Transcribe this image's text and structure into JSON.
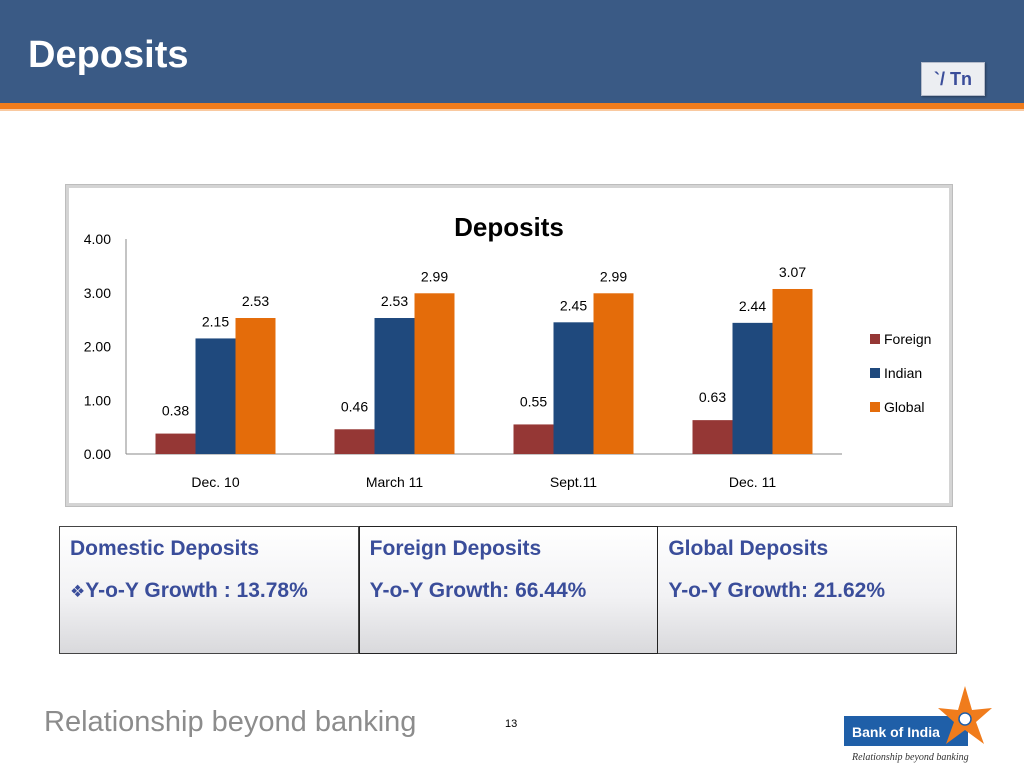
{
  "header": {
    "title": "Deposits",
    "unit_badge": "`/ Tn"
  },
  "chart_data": {
    "type": "bar",
    "title": "Deposits",
    "categories": [
      "Dec. 10",
      "March 11",
      "Sept.11",
      "Dec. 11"
    ],
    "series": [
      {
        "name": "Foreign",
        "color": "#953735",
        "values": [
          0.38,
          0.46,
          0.55,
          0.63
        ],
        "labels": [
          "0.38",
          "0.46",
          "0.55",
          "0.63"
        ]
      },
      {
        "name": "Indian",
        "color": "#1f497d",
        "values": [
          2.15,
          2.53,
          2.45,
          2.44
        ],
        "labels": [
          "2.15",
          "2.53",
          "2.45",
          "2.44"
        ]
      },
      {
        "name": "Global",
        "color": "#e46c0a",
        "values": [
          2.53,
          2.99,
          2.99,
          3.07
        ],
        "labels": [
          "2.53",
          "2.99",
          "2.99",
          "3.07"
        ]
      }
    ],
    "y_ticks": [
      "0.00",
      "1.00",
      "2.00",
      "3.00",
      "4.00"
    ],
    "ylim": [
      0,
      4
    ],
    "legend_position": "right",
    "grid": false
  },
  "summary": [
    {
      "title": "Domestic Deposits",
      "growth": "Y-o-Y Growth :  13.78%"
    },
    {
      "title": "Foreign Deposits",
      "growth": "Y-o-Y Growth:  66.44%"
    },
    {
      "title": "Global  Deposits",
      "growth": "Y-o-Y Growth: 21.62%"
    }
  ],
  "footer": {
    "tagline": "Relationship beyond banking",
    "page_number": "13",
    "logo_name": "Bank of India",
    "logo_tagline": "Relationship beyond banking"
  }
}
